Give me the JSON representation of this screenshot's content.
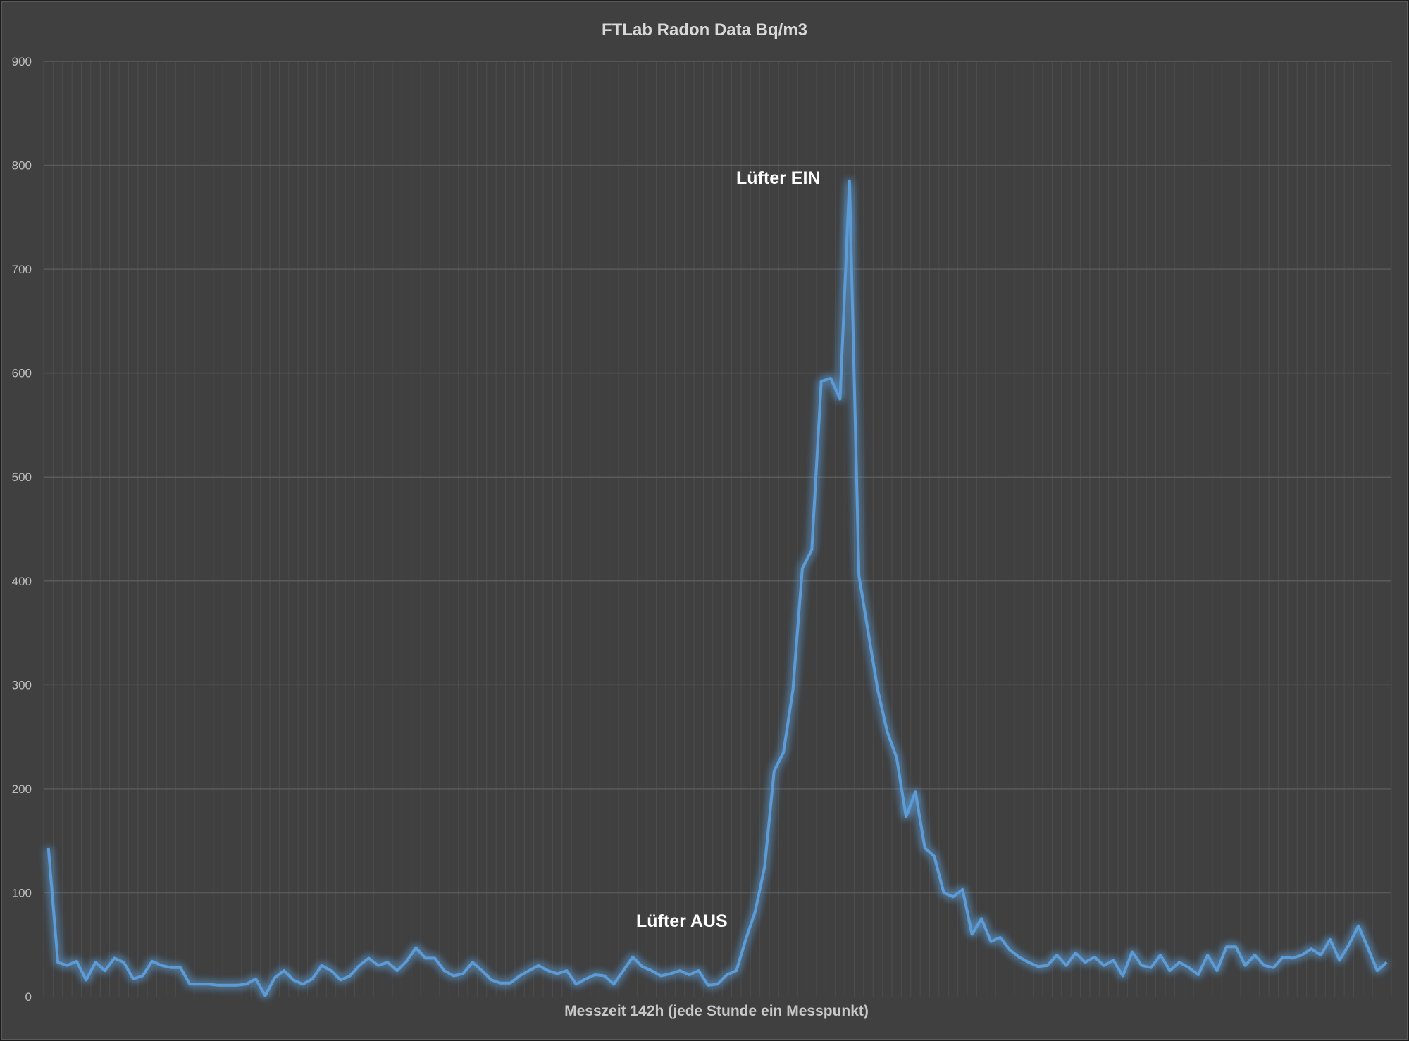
{
  "chart_data": {
    "type": "line",
    "title": "FTLab Radon Data Bq/m3",
    "xlabel": "Messzeit 142h (jede Stunde ein Messpunkt)",
    "ylabel": "",
    "ylim": [
      0,
      900
    ],
    "yticks": [
      "0",
      "100",
      "200",
      "300",
      "400",
      "500",
      "600",
      "700",
      "800",
      "900"
    ],
    "grid": true,
    "legend": "none",
    "series": [
      {
        "color": "#5b9bd5",
        "values": [
          143,
          33,
          30,
          34,
          16,
          33,
          25,
          37,
          33,
          17,
          20,
          34,
          30,
          28,
          28,
          12,
          12,
          12,
          11,
          11,
          11,
          12,
          17,
          1,
          18,
          25,
          16,
          12,
          17,
          30,
          25,
          16,
          20,
          30,
          37,
          30,
          33,
          25,
          34,
          47,
          37,
          37,
          25,
          20,
          22,
          33,
          25,
          16,
          13,
          13,
          20,
          25,
          30,
          25,
          22,
          25,
          12,
          17,
          21,
          20,
          12,
          25,
          38,
          29,
          25,
          20,
          22,
          25,
          21,
          25,
          11,
          12,
          21,
          25,
          55,
          82,
          125,
          217,
          235,
          295,
          412,
          430,
          592,
          595,
          575,
          785,
          405,
          350,
          295,
          255,
          230,
          173,
          197,
          143,
          135,
          100,
          96,
          103,
          60,
          75,
          53,
          57,
          45,
          38,
          33,
          29,
          30,
          40,
          30,
          42,
          33,
          38,
          30,
          35,
          20,
          43,
          30,
          28,
          40,
          25,
          33,
          28,
          21,
          40,
          25,
          48,
          48,
          30,
          40,
          30,
          28,
          38,
          37,
          40,
          46,
          40,
          55,
          35,
          50,
          68,
          47,
          25,
          33
        ]
      }
    ],
    "annotations": [
      {
        "text": "Lüfter EIN"
      },
      {
        "text": "Lüfter AUS"
      }
    ]
  }
}
